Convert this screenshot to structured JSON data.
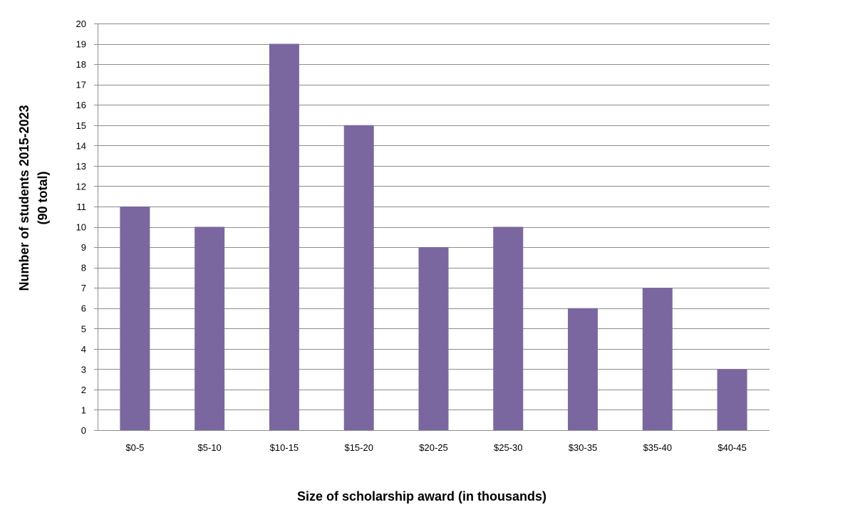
{
  "chart_data": {
    "type": "bar",
    "categories": [
      "$0-5",
      "$5-10",
      "$10-15",
      "$15-20",
      "$20-25",
      "$25-30",
      "$30-35",
      "$35-40",
      "$40-45"
    ],
    "values": [
      11,
      10,
      19,
      15,
      9,
      10,
      6,
      7,
      3
    ],
    "title": "",
    "xlabel": "Size of scholarship award (in thousands)",
    "ylabel_lines": [
      "Number of students  2015-2023",
      "(90  total)"
    ],
    "ylim": [
      0,
      20
    ],
    "yticks": [
      0,
      1,
      2,
      3,
      4,
      5,
      6,
      7,
      8,
      9,
      10,
      11,
      12,
      13,
      14,
      15,
      16,
      17,
      18,
      19,
      20
    ],
    "grid": true,
    "legend": "none",
    "bar_color": "#7b67a0",
    "grid_color": "#8c8c8c"
  }
}
